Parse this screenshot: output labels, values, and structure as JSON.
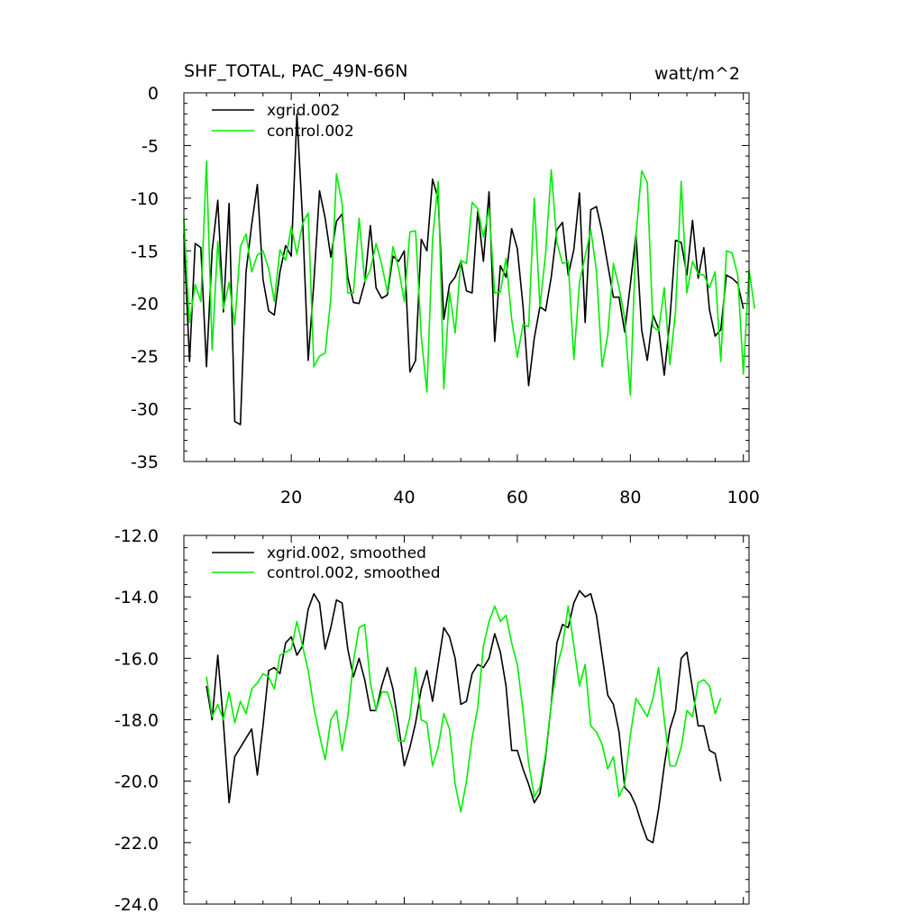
{
  "chart_data": [
    {
      "type": "line",
      "title": "SHF_TOTAL, PAC_49N-66N",
      "units": "watt/m^2",
      "xlabel": "",
      "ylabel": "",
      "xlim": [
        1,
        101
      ],
      "ylim": [
        -35,
        0
      ],
      "xticks": [
        20,
        40,
        60,
        80,
        100
      ],
      "xtick_labels": [
        "20",
        "40",
        "60",
        "80",
        "100"
      ],
      "yticks": [
        0,
        -5,
        -10,
        -15,
        -20,
        -25,
        -30,
        -35
      ],
      "ytick_labels": [
        "0",
        "-5",
        "-10",
        "-15",
        "-20",
        "-25",
        "-30",
        "-35"
      ],
      "legend_position": "top-left",
      "series": [
        {
          "name": "xgrid.002",
          "color": "#000000",
          "values": [
            -13.5,
            -25.5,
            -14.3,
            -14.7,
            -26.0,
            -15.0,
            -10.2,
            -20.8,
            -10.5,
            -31.2,
            -31.5,
            -17.0,
            -12.5,
            -8.7,
            -17.7,
            -20.7,
            -21.1,
            -17.0,
            -14.5,
            -15.5,
            -2.0,
            -12.0,
            -25.4,
            -18.0,
            -9.3,
            -11.9,
            -15.6,
            -12.2,
            -11.5,
            -17.5,
            -19.9,
            -20.0,
            -18.0,
            -12.6,
            -18.5,
            -19.5,
            -19.2,
            -15.5,
            -16.0,
            -15.0,
            -26.5,
            -25.4,
            -13.9,
            -15.0,
            -8.2,
            -10.1,
            -21.5,
            -18.2,
            -17.5,
            -16.0,
            -18.8,
            -19.0,
            -11.2,
            -16.0,
            -9.4,
            -23.6,
            -16.4,
            -17.5,
            -12.9,
            -14.8,
            -20.2,
            -27.8,
            -23.3,
            -20.3,
            -20.7,
            -17.5,
            -13.0,
            -12.3,
            -17.3,
            -14.9,
            -9.5,
            -21.8,
            -11.1,
            -10.8,
            -13.2,
            -16.3,
            -19.4,
            -19.4,
            -22.7,
            -18.2,
            -13.4,
            -22.5,
            -25.4,
            -21.1,
            -22.4,
            -26.8,
            -21.5,
            -14.0,
            -14.2,
            -17.3,
            -12.1,
            -17.6,
            -14.7,
            -20.6,
            -23.1,
            -22.5,
            -17.3,
            -17.6,
            -18.1,
            -20.5
          ]
        },
        {
          "name": "control.002",
          "color": "#00ee00",
          "values": [
            -12.0,
            -21.8,
            -18.2,
            -19.8,
            -6.5,
            -24.4,
            -14.1,
            -20.5,
            -18.0,
            -22.0,
            -14.6,
            -13.4,
            -17.0,
            -15.4,
            -15.0,
            -16.7,
            -19.8,
            -14.9,
            -15.9,
            -12.7,
            -15.3,
            -12.4,
            -11.4,
            -26.0,
            -25.0,
            -24.7,
            -19.5,
            -7.7,
            -10.5,
            -19.0,
            -19.0,
            -11.9,
            -17.9,
            -16.8,
            -14.3,
            -16.3,
            -18.9,
            -14.6,
            -16.7,
            -19.8,
            -13.2,
            -13.1,
            -23.1,
            -28.4,
            -13.9,
            -8.4,
            -28.1,
            -18.9,
            -22.8,
            -15.9,
            -16.2,
            -10.4,
            -11.0,
            -13.7,
            -11.0,
            -19.0,
            -18.9,
            -15.7,
            -21.5,
            -25.1,
            -22.0,
            -22.2,
            -10.0,
            -20.3,
            -15.3,
            -7.3,
            -14.2,
            -16.2,
            -16.0,
            -25.3,
            -18.0,
            -15.5,
            -13.0,
            -16.9,
            -26.0,
            -23.0,
            -16.2,
            -18.5,
            -21.4,
            -28.7,
            -13.5,
            -7.4,
            -8.5,
            -22.2,
            -22.6,
            -18.5,
            -25.8,
            -20.7,
            -8.4,
            -19.0,
            -16.0,
            -17.2,
            -17.3,
            -18.5,
            -17.0,
            -25.5,
            -15.0,
            -15.2,
            -17.3,
            -26.7,
            -16.8,
            -20.5
          ]
        }
      ]
    },
    {
      "type": "line",
      "title": "",
      "xlabel": "",
      "ylabel": "",
      "xlim": [
        1,
        101
      ],
      "ylim": [
        -24,
        -12
      ],
      "xticks": [
        20,
        40,
        60,
        80,
        100
      ],
      "xtick_labels": [],
      "yticks": [
        -12,
        -14,
        -16,
        -18,
        -20,
        -22,
        -24
      ],
      "ytick_labels": [
        "-12.0",
        "-14.0",
        "-16.0",
        "-18.0",
        "-20.0",
        "-22.0",
        "-24.0"
      ],
      "legend_position": "top-left",
      "series": [
        {
          "name": "xgrid.002, smoothed",
          "color": "#000000",
          "x_start": 5,
          "values": [
            -16.9,
            -18.0,
            -15.9,
            -18.1,
            -20.7,
            -19.2,
            -18.9,
            -18.6,
            -18.3,
            -19.8,
            -18.2,
            -16.4,
            -16.3,
            -16.5,
            -15.5,
            -15.3,
            -15.9,
            -15.6,
            -14.4,
            -13.9,
            -14.2,
            -15.7,
            -15.0,
            -14.1,
            -14.2,
            -15.7,
            -16.6,
            -16.0,
            -16.7,
            -17.7,
            -17.7,
            -16.9,
            -16.3,
            -17.0,
            -18.2,
            -19.5,
            -18.9,
            -18.1,
            -17.0,
            -16.4,
            -17.4,
            -16.2,
            -15.0,
            -15.3,
            -16.0,
            -17.5,
            -17.4,
            -16.5,
            -16.2,
            -16.3,
            -16.0,
            -15.2,
            -15.8,
            -16.9,
            -19.0,
            -19.0,
            -19.6,
            -20.1,
            -20.7,
            -20.4,
            -19.2,
            -17.5,
            -15.5,
            -14.9,
            -15.0,
            -14.2,
            -13.8,
            -14.0,
            -13.9,
            -14.6,
            -15.9,
            -17.2,
            -17.5,
            -18.4,
            -20.2,
            -20.4,
            -20.8,
            -21.4,
            -21.9,
            -22.0,
            -20.9,
            -19.5,
            -18.3,
            -17.7,
            -16.0,
            -15.8,
            -17.0,
            -18.2,
            -18.2,
            -19.0,
            -19.1,
            -20.0
          ]
        },
        {
          "name": "control.002, smoothed",
          "color": "#00ee00",
          "x_start": 5,
          "values": [
            -16.6,
            -17.9,
            -17.5,
            -18.0,
            -17.1,
            -18.1,
            -17.4,
            -17.8,
            -17.0,
            -16.8,
            -16.5,
            -16.6,
            -17.0,
            -15.9,
            -15.8,
            -15.7,
            -14.8,
            -15.6,
            -16.4,
            -17.6,
            -18.5,
            -19.3,
            -18.0,
            -17.7,
            -19.0,
            -17.9,
            -16.1,
            -15.0,
            -14.9,
            -16.8,
            -17.7,
            -17.1,
            -17.1,
            -17.7,
            -18.7,
            -18.7,
            -17.9,
            -16.3,
            -18.0,
            -18.1,
            -19.5,
            -18.9,
            -17.8,
            -18.3,
            -20.1,
            -21.0,
            -20.0,
            -18.6,
            -17.6,
            -15.6,
            -14.8,
            -14.3,
            -14.8,
            -14.6,
            -15.5,
            -16.2,
            -17.7,
            -19.4,
            -20.5,
            -20.2,
            -19.1,
            -17.5,
            -16.3,
            -15.6,
            -14.3,
            -15.6,
            -16.9,
            -16.2,
            -18.2,
            -18.4,
            -18.8,
            -19.6,
            -19.2,
            -20.5,
            -20.1,
            -18.5,
            -17.3,
            -17.6,
            -17.9,
            -17.3,
            -16.3,
            -18.0,
            -19.5,
            -19.5,
            -18.9,
            -17.7,
            -17.9,
            -16.8,
            -16.7,
            -16.9,
            -17.8,
            -17.3
          ]
        }
      ]
    }
  ]
}
